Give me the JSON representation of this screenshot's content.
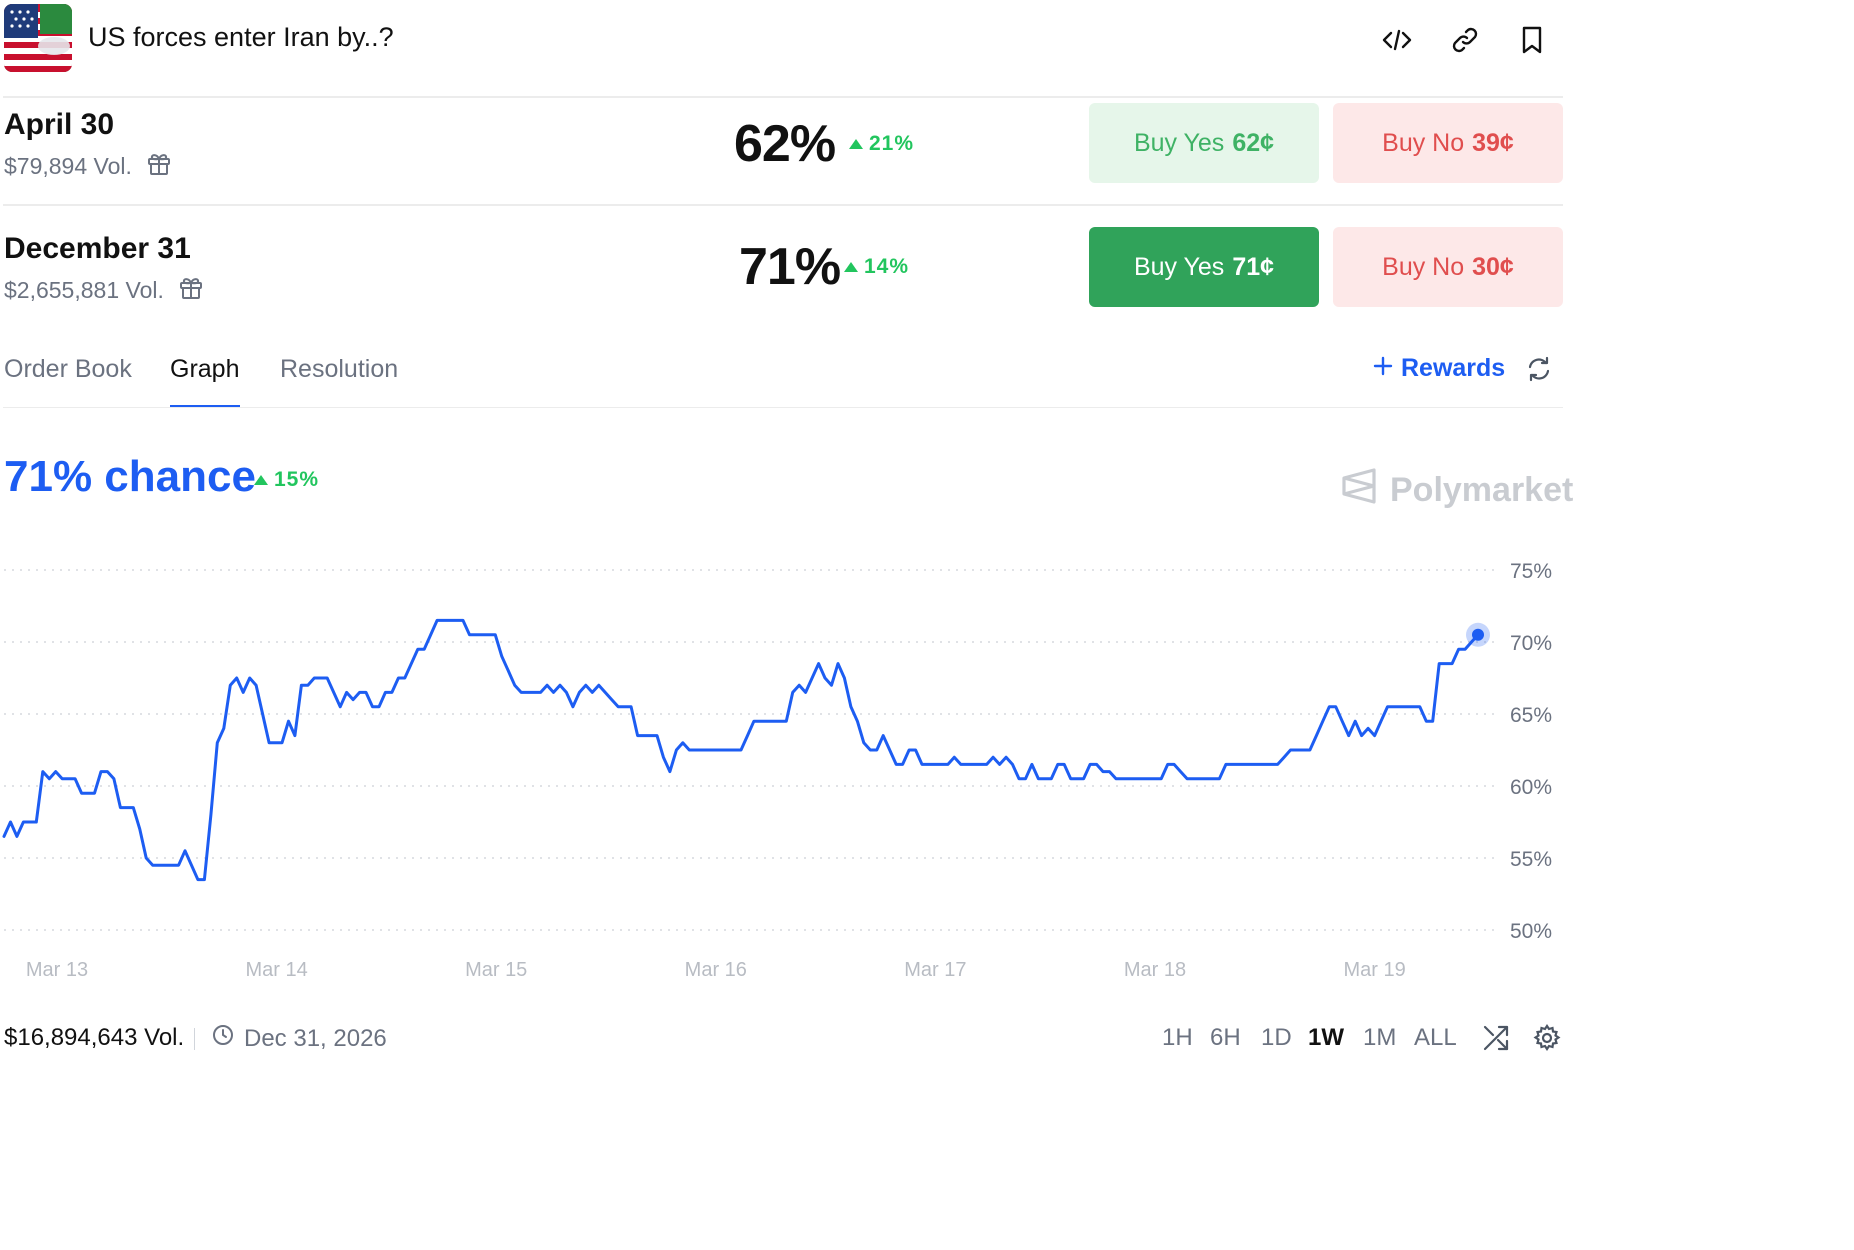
{
  "header": {
    "title": "US forces enter Iran by..?"
  },
  "outcomes": [
    {
      "name": "April 30",
      "volume": "$79,894 Vol.",
      "percent": "62%",
      "change": "21%",
      "buy_yes_label": "Buy Yes",
      "buy_yes_price": "62¢",
      "buy_no_label": "Buy No",
      "buy_no_price": "39¢"
    },
    {
      "name": "December 31",
      "volume": "$2,655,881 Vol.",
      "percent": "71%",
      "change": "14%",
      "buy_yes_label": "Buy Yes",
      "buy_yes_price": "71¢",
      "buy_no_label": "Buy No",
      "buy_no_price": "30¢"
    }
  ],
  "tabs": [
    {
      "label": "Order Book",
      "active": false
    },
    {
      "label": "Graph",
      "active": true
    },
    {
      "label": "Resolution",
      "active": false
    }
  ],
  "rewards_label": "Rewards",
  "chance": {
    "label": "71% chance",
    "change": "15%"
  },
  "brand": "Polymarket",
  "footer": {
    "volume": "$16,894,643 Vol.",
    "end_date": "Dec 31, 2026",
    "ranges": [
      "1H",
      "6H",
      "1D",
      "1W",
      "1M",
      "ALL"
    ],
    "active_range": "1W"
  },
  "colors": {
    "accent_blue": "#1d5df2",
    "green": "#22c55e",
    "buy_yes_dark": "#30a35a",
    "buy_no_text": "#e04e4e"
  },
  "chart_data": {
    "type": "line",
    "x_tick_labels": [
      "Mar 13",
      "Mar 14",
      "Mar 15",
      "Mar 16",
      "Mar 17",
      "Mar 18",
      "Mar 19"
    ],
    "y_tick_labels": [
      "75%",
      "70%",
      "65%",
      "60%",
      "55%",
      "50%"
    ],
    "ylim": [
      50,
      75
    ],
    "grid": true,
    "series": [
      {
        "values": [
          56.5,
          57.5,
          56.5,
          57.5,
          57.5,
          57.5,
          61,
          60.5,
          61,
          60.5,
          60.5,
          60.5,
          59.5,
          59.5,
          59.5,
          61,
          61,
          60.5,
          58.5,
          58.5,
          58.5,
          57,
          55,
          54.5,
          54.5,
          54.5,
          54.5,
          54.5,
          55.5,
          54.5,
          53.5,
          53.5,
          58,
          63,
          64,
          67,
          67.5,
          66.5,
          67.5,
          67,
          65,
          63,
          63,
          63,
          64.5,
          63.5,
          67,
          67,
          67.5,
          67.5,
          67.5,
          66.5,
          65.5,
          66.5,
          66,
          66.5,
          66.5,
          65.5,
          65.5,
          66.5,
          66.5,
          67.5,
          67.5,
          68.5,
          69.5,
          69.5,
          70.5,
          71.5,
          71.5,
          71.5,
          71.5,
          71.5,
          70.5,
          70.5,
          70.5,
          70.5,
          70.5,
          69,
          68,
          67,
          66.5,
          66.5,
          66.5,
          66.5,
          67,
          66.5,
          67,
          66.5,
          65.5,
          66.5,
          67,
          66.5,
          67,
          66.5,
          66,
          65.5,
          65.5,
          65.5,
          63.5,
          63.5,
          63.5,
          63.5,
          62,
          61,
          62.5,
          63,
          62.5,
          62.5,
          62.5,
          62.5,
          62.5,
          62.5,
          62.5,
          62.5,
          62.5,
          63.5,
          64.5,
          64.5,
          64.5,
          64.5,
          64.5,
          64.5,
          66.5,
          67,
          66.5,
          67.5,
          68.5,
          67.5,
          67,
          68.5,
          67.5,
          65.5,
          64.5,
          63,
          62.5,
          62.5,
          63.5,
          62.5,
          61.5,
          61.5,
          62.5,
          62.5,
          61.5,
          61.5,
          61.5,
          61.5,
          61.5,
          62,
          61.5,
          61.5,
          61.5,
          61.5,
          61.5,
          62,
          61.5,
          62,
          61.5,
          60.5,
          60.5,
          61.5,
          60.5,
          60.5,
          60.5,
          61.5,
          61.5,
          60.5,
          60.5,
          60.5,
          61.5,
          61.5,
          61,
          61,
          60.5,
          60.5,
          60.5,
          60.5,
          60.5,
          60.5,
          60.5,
          60.5,
          61.5,
          61.5,
          61,
          60.5,
          60.5,
          60.5,
          60.5,
          60.5,
          60.5,
          61.5,
          61.5,
          61.5,
          61.5,
          61.5,
          61.5,
          61.5,
          61.5,
          61.5,
          62,
          62.5,
          62.5,
          62.5,
          62.5,
          63.5,
          64.5,
          65.5,
          65.5,
          64.5,
          63.5,
          64.5,
          63.5,
          64,
          63.5,
          64.5,
          65.5,
          65.5,
          65.5,
          65.5,
          65.5,
          65.5,
          64.5,
          64.5,
          68.5,
          68.5,
          68.5,
          69.5,
          69.5,
          70,
          70.5
        ]
      }
    ]
  }
}
